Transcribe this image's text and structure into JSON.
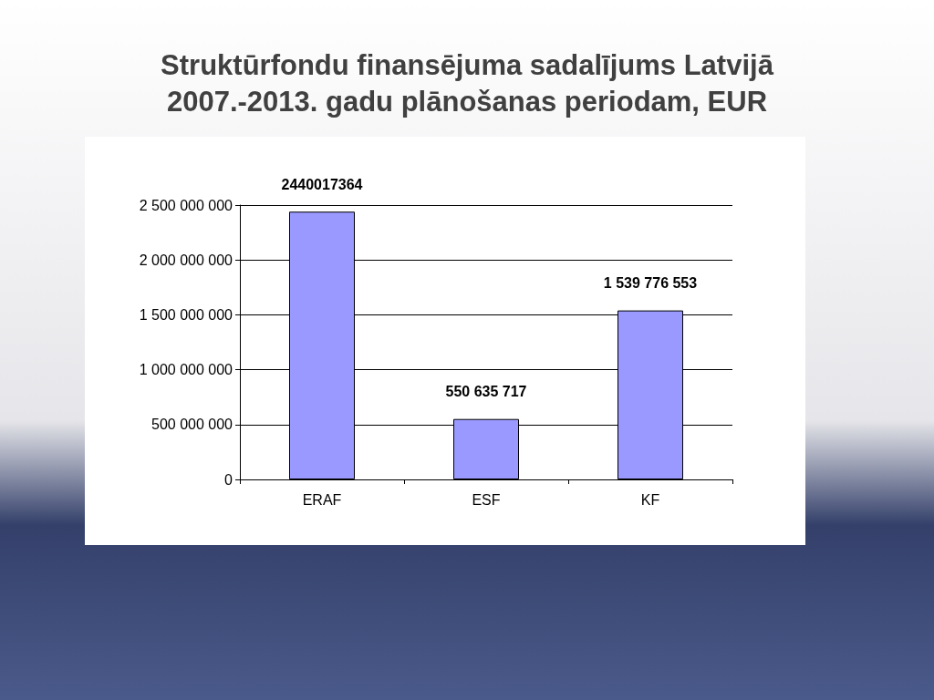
{
  "chart_data": {
    "type": "bar",
    "title": "Struktūrfondu finansējuma sadalījums Latvijā\n2007.-2013. gadu plānošanas periodam, EUR",
    "categories": [
      "ERAF",
      "ESF",
      "KF"
    ],
    "values": [
      2440017364,
      550635717,
      1539776553
    ],
    "value_labels": [
      "2440017364",
      "550 635 717",
      "1 539 776 553"
    ],
    "color": "#9999ff",
    "ylim": [
      0,
      2500000000
    ],
    "yticks": [
      {
        "value": 0,
        "label": "0"
      },
      {
        "value": 500000000,
        "label": "500 000 000"
      },
      {
        "value": 1000000000,
        "label": "1 000 000 000"
      },
      {
        "value": 1500000000,
        "label": "1 500 000 000"
      },
      {
        "value": 2000000000,
        "label": "2 000 000 000"
      },
      {
        "value": 2500000000,
        "label": "2 500 000 000"
      }
    ],
    "grid": "y"
  }
}
